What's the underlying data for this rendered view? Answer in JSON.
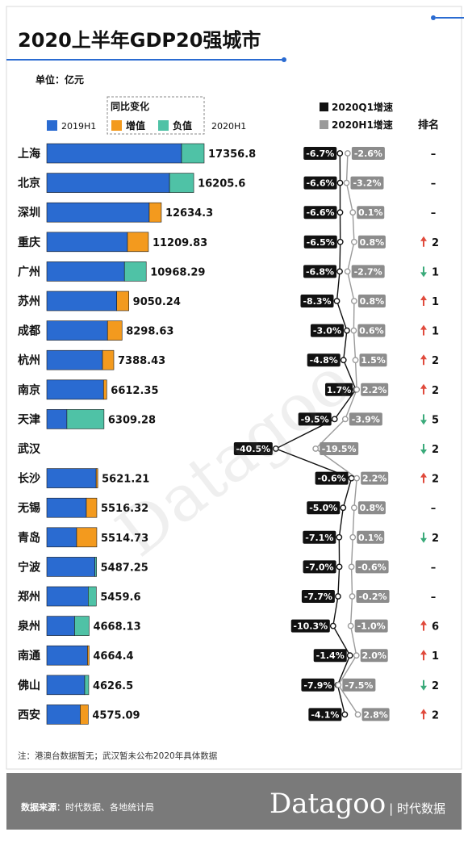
{
  "chart_data": {
    "type": "bar",
    "title": "2020上半年GDP20强城市",
    "unit_label": "单位：亿元",
    "legend": {
      "group_label": "同比变化",
      "base": "2019H1",
      "increase": "增值",
      "decrease": "负值",
      "current": "2020H1",
      "q1": "2020Q1增速",
      "h1": "2020H1增速",
      "rank": "排名"
    },
    "colors": {
      "base": "#2a6bd1",
      "increase": "#f39a1e",
      "decrease": "#4fc2a6",
      "q1": "#111111",
      "h1": "#9a9a9a",
      "up": "#e04a3c",
      "down": "#3aaa7a"
    },
    "cities": [
      {
        "name": "上海",
        "gdp2020": 17356.8,
        "label": "17356.8",
        "q1": -6.7,
        "q1_label": "-6.7%",
        "h1": -2.6,
        "h1_label": "-2.6%",
        "rank": "–",
        "trend": "none"
      },
      {
        "name": "北京",
        "gdp2020": 16205.6,
        "label": "16205.6",
        "q1": -6.6,
        "q1_label": "-6.6%",
        "h1": -3.2,
        "h1_label": "-3.2%",
        "rank": "–",
        "trend": "none"
      },
      {
        "name": "深圳",
        "gdp2020": 12634.3,
        "label": "12634.3",
        "q1": -6.6,
        "q1_label": "-6.6%",
        "h1": 0.1,
        "h1_label": "0.1%",
        "rank": "–",
        "trend": "none"
      },
      {
        "name": "重庆",
        "gdp2020": 11209.83,
        "label": "11209.83",
        "q1": -6.5,
        "q1_label": "-6.5%",
        "h1": 0.8,
        "h1_label": "0.8%",
        "rank": "2",
        "trend": "up"
      },
      {
        "name": "广州",
        "gdp2020": 10968.29,
        "label": "10968.29",
        "q1": -6.8,
        "q1_label": "-6.8%",
        "h1": -2.7,
        "h1_label": "-2.7%",
        "rank": "1",
        "trend": "down"
      },
      {
        "name": "苏州",
        "gdp2020": 9050.24,
        "label": "9050.24",
        "q1": -8.3,
        "q1_label": "-8.3%",
        "h1": 0.8,
        "h1_label": "0.8%",
        "rank": "1",
        "trend": "up"
      },
      {
        "name": "成都",
        "gdp2020": 8298.63,
        "label": "8298.63",
        "q1": -3.0,
        "q1_label": "-3.0%",
        "h1": 0.6,
        "h1_label": "0.6%",
        "rank": "1",
        "trend": "up"
      },
      {
        "name": "杭州",
        "gdp2020": 7388.43,
        "label": "7388.43",
        "q1": -4.8,
        "q1_label": "-4.8%",
        "h1": 1.5,
        "h1_label": "1.5%",
        "rank": "2",
        "trend": "up"
      },
      {
        "name": "南京",
        "gdp2020": 6612.35,
        "label": "6612.35",
        "q1": 1.7,
        "q1_label": "1.7%",
        "h1": 2.2,
        "h1_label": "2.2%",
        "rank": "2",
        "trend": "up"
      },
      {
        "name": "天津",
        "gdp2020": 6309.28,
        "label": "6309.28",
        "q1": -9.5,
        "q1_label": "-9.5%",
        "h1": -3.9,
        "h1_label": "-3.9%",
        "rank": "5",
        "trend": "down"
      },
      {
        "name": "武汉",
        "gdp2020": null,
        "label": "",
        "q1": -40.5,
        "q1_label": "-40.5%",
        "h1": -19.5,
        "h1_label": "-19.5%",
        "rank": "2",
        "trend": "down"
      },
      {
        "name": "长沙",
        "gdp2020": 5621.21,
        "label": "5621.21",
        "q1": -0.6,
        "q1_label": "-0.6%",
        "h1": 2.2,
        "h1_label": "2.2%",
        "rank": "2",
        "trend": "up"
      },
      {
        "name": "无锡",
        "gdp2020": 5516.32,
        "label": "5516.32",
        "q1": -5.0,
        "q1_label": "-5.0%",
        "h1": 0.8,
        "h1_label": "0.8%",
        "rank": "–",
        "trend": "none"
      },
      {
        "name": "青岛",
        "gdp2020": 5514.73,
        "label": "5514.73",
        "q1": -7.1,
        "q1_label": "-7.1%",
        "h1": 0.1,
        "h1_label": "0.1%",
        "rank": "2",
        "trend": "down"
      },
      {
        "name": "宁波",
        "gdp2020": 5487.25,
        "label": "5487.25",
        "q1": -7.0,
        "q1_label": "-7.0%",
        "h1": -0.6,
        "h1_label": "-0.6%",
        "rank": "–",
        "trend": "none"
      },
      {
        "name": "郑州",
        "gdp2020": 5459.6,
        "label": "5459.6",
        "q1": -7.7,
        "q1_label": "-7.7%",
        "h1": -0.2,
        "h1_label": "-0.2%",
        "rank": "–",
        "trend": "none"
      },
      {
        "name": "泉州",
        "gdp2020": 4668.13,
        "label": "4668.13",
        "q1": -10.3,
        "q1_label": "-10.3%",
        "h1": -1.0,
        "h1_label": "-1.0%",
        "rank": "6",
        "trend": "up"
      },
      {
        "name": "南通",
        "gdp2020": 4664.4,
        "label": "4664.4",
        "q1": -1.4,
        "q1_label": "-1.4%",
        "h1": 2.0,
        "h1_label": "2.0%",
        "rank": "1",
        "trend": "up"
      },
      {
        "name": "佛山",
        "gdp2020": 4626.5,
        "label": "4626.5",
        "q1": -7.9,
        "q1_label": "-7.9%",
        "h1": -7.5,
        "h1_label": "-7.5%",
        "rank": "2",
        "trend": "down"
      },
      {
        "name": "西安",
        "gdp2020": 4575.09,
        "label": "4575.09",
        "q1": -4.1,
        "q1_label": "-4.1%",
        "h1": 2.8,
        "h1_label": "2.8%",
        "rank": "2",
        "trend": "up"
      }
    ],
    "note": "注：港澳台数据暂无；武汉暂未公布2020年具体数据"
  },
  "footer": {
    "source_label": "数据来源",
    "source_text": "：时代数据、各地统计局",
    "logo": "Datagoo",
    "logo_cn": "| 时代数据"
  },
  "watermark": "Datagoo"
}
